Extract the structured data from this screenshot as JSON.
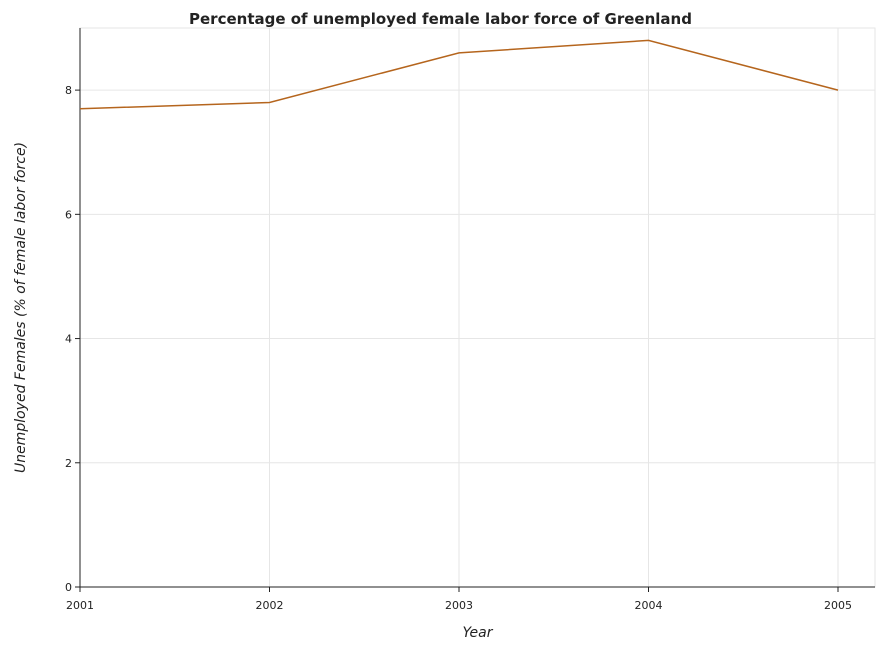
{
  "chart_data": {
    "type": "line",
    "title": "Percentage of unemployed female labor force of Greenland",
    "xlabel": "Year",
    "ylabel": "Unemployed Females (% of female labor force)",
    "categories": [
      "2001",
      "2002",
      "2003",
      "2004",
      "2005"
    ],
    "series": [
      {
        "values": [
          7.7,
          7.8,
          8.6,
          8.8,
          8.0
        ]
      }
    ],
    "ylim": [
      0,
      9
    ],
    "yticks": [
      0,
      2,
      4,
      6,
      8
    ],
    "grid": true,
    "line_color": "#b5651d"
  }
}
